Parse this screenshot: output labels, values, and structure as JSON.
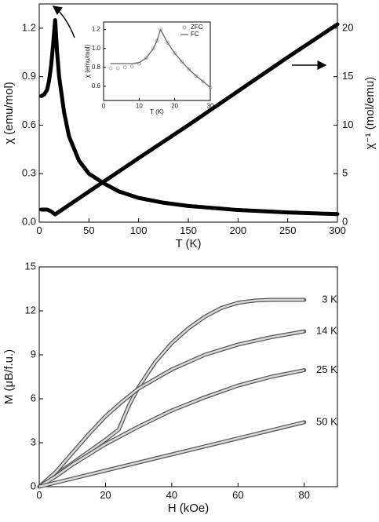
{
  "chart_data": [
    {
      "type": "line",
      "xlabel": "T (K)",
      "ylabel": "χ (emu/mol)",
      "y2label": "χ⁻¹ (mol/emu)",
      "xlim": [
        0,
        300
      ],
      "xticks": [
        0,
        50,
        100,
        150,
        200,
        250,
        300
      ],
      "ylim": [
        0,
        1.35
      ],
      "yticks": [
        {
          "value": 0,
          "label": "0.0"
        },
        0.3,
        0.6,
        0.9,
        1.2
      ],
      "y2lim": [
        0,
        22.5
      ],
      "y2ticks": [
        0,
        5,
        10,
        15,
        20
      ],
      "series": [
        {
          "color": "#000000",
          "x": [
            2,
            5,
            8,
            10,
            12,
            14,
            16,
            18,
            20,
            25,
            30,
            40,
            50,
            65,
            80,
            100,
            125,
            150,
            200,
            250,
            300
          ],
          "values": [
            0.78,
            0.79,
            0.82,
            0.88,
            0.97,
            1.1,
            1.25,
            1.05,
            0.9,
            0.68,
            0.53,
            0.38,
            0.3,
            0.24,
            0.19,
            0.15,
            0.12,
            0.1,
            0.075,
            0.06,
            0.05
          ]
        },
        {
          "color": "#000000",
          "axis": "y2",
          "x": [
            2,
            8,
            12,
            16,
            50,
            100,
            150,
            200,
            250,
            300
          ],
          "values": [
            1.3,
            1.3,
            1.1,
            0.8,
            3.15,
            6.6,
            10.0,
            13.5,
            17.0,
            20.4
          ]
        }
      ]
    },
    {
      "type": "line",
      "xlabel": "T (K)",
      "ylabel": "χ (emu/mol)",
      "xlim": [
        0,
        30
      ],
      "xticks": [
        0,
        10,
        20,
        30
      ],
      "ylim": [
        0.45,
        1.28
      ],
      "yticks": [
        0.6,
        0.8,
        {
          "value": 1,
          "label": "1.0"
        },
        1.2
      ],
      "series": [
        {
          "name": "ZFC",
          "color": "#999999",
          "marker": "circle",
          "x": [
            2,
            4,
            6,
            8,
            10,
            12,
            14,
            15,
            16,
            18,
            20,
            22,
            24,
            26,
            28,
            30
          ],
          "values": [
            0.79,
            0.79,
            0.8,
            0.81,
            0.84,
            0.9,
            1.0,
            1.08,
            1.2,
            1.06,
            0.95,
            0.86,
            0.78,
            0.71,
            0.65,
            0.59
          ]
        },
        {
          "name": "FC",
          "color": "#666666",
          "x": [
            2,
            4,
            6,
            8,
            10,
            12,
            14,
            15,
            16,
            18,
            20,
            22,
            24,
            26,
            28,
            30
          ],
          "values": [
            0.84,
            0.84,
            0.84,
            0.84,
            0.85,
            0.9,
            1.0,
            1.08,
            1.2,
            1.06,
            0.95,
            0.86,
            0.78,
            0.71,
            0.65,
            0.59
          ]
        }
      ]
    },
    {
      "type": "line",
      "xlabel": "H (kOe)",
      "ylabel": "M (μB/f.u.)",
      "xlim": [
        0,
        90
      ],
      "xticks": [
        0,
        20,
        40,
        60,
        80
      ],
      "ylim": [
        0,
        15
      ],
      "yticks": [
        0,
        3,
        6,
        9,
        12,
        15
      ],
      "annotations": [
        "3 K",
        "14 K",
        "25 K",
        "50 K"
      ],
      "series": [
        {
          "color": "#555555",
          "x": [
            0,
            5,
            10,
            15,
            20,
            24,
            27,
            30,
            35,
            40,
            45,
            50,
            55,
            60,
            65,
            70,
            80
          ],
          "values": [
            0,
            0.8,
            1.6,
            2.4,
            3.2,
            3.9,
            5.5,
            6.8,
            8.5,
            9.8,
            10.8,
            11.6,
            12.2,
            12.55,
            12.7,
            12.75,
            12.75
          ]
        },
        {
          "color": "#555555",
          "x": [
            0,
            5,
            10,
            15,
            20,
            25,
            30,
            40,
            50,
            60,
            70,
            80
          ],
          "values": [
            0,
            1.0,
            2.3,
            3.6,
            4.8,
            5.8,
            6.7,
            8.0,
            9.0,
            9.7,
            10.2,
            10.6
          ]
        },
        {
          "color": "#555555",
          "x": [
            0,
            5,
            10,
            20,
            30,
            40,
            50,
            60,
            70,
            80
          ],
          "values": [
            0,
            0.7,
            1.5,
            2.9,
            4.1,
            5.2,
            6.1,
            6.9,
            7.5,
            7.95
          ]
        },
        {
          "color": "#555555",
          "x": [
            0,
            20,
            40,
            60,
            80
          ],
          "values": [
            0,
            1.1,
            2.2,
            3.3,
            4.4
          ]
        }
      ]
    }
  ]
}
